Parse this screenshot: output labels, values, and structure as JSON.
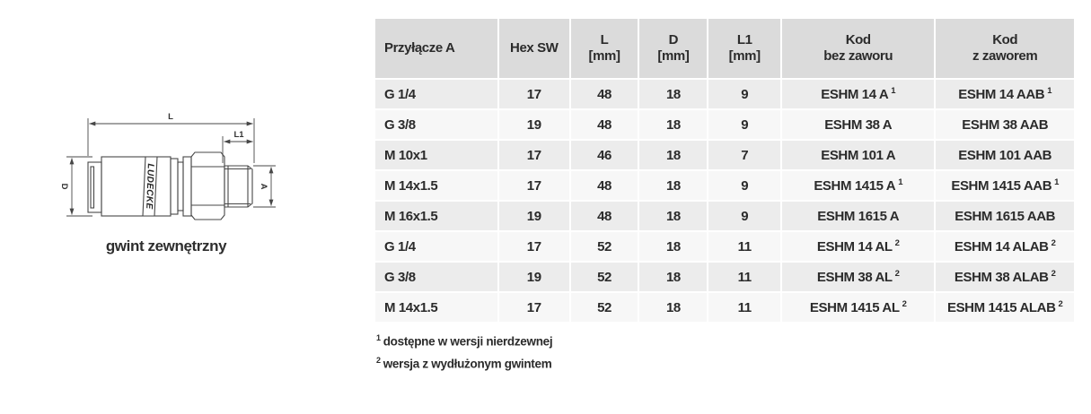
{
  "colors": {
    "header_bg": "#dbdbdb",
    "row_odd": "#ececec",
    "row_even": "#f7f7f7",
    "text": "#2b2b2b",
    "line": "#474747",
    "page_bg": "#ffffff"
  },
  "drawing": {
    "caption": "gwint zewnętrzny",
    "brand_label": "LUDECKE",
    "dim_labels": {
      "length": "L",
      "length1": "L1",
      "diameter": "D",
      "thread": "A"
    }
  },
  "table": {
    "columns": [
      {
        "label": "Przyłącze A",
        "sub": ""
      },
      {
        "label": "Hex SW",
        "sub": ""
      },
      {
        "label": "L",
        "sub": "[mm]"
      },
      {
        "label": "D",
        "sub": "[mm]"
      },
      {
        "label": "L1",
        "sub": "[mm]"
      },
      {
        "label": "Kod",
        "sub": "bez zaworu"
      },
      {
        "label": "Kod",
        "sub": "z zaworem"
      }
    ],
    "rows": [
      [
        "G 1/4",
        "17",
        "48",
        "18",
        "9",
        {
          "text": "ESHM 14 A",
          "sup": "1"
        },
        {
          "text": "ESHM 14 AAB",
          "sup": "1"
        }
      ],
      [
        "G 3/8",
        "19",
        "48",
        "18",
        "9",
        {
          "text": "ESHM 38 A",
          "sup": ""
        },
        {
          "text": "ESHM 38 AAB",
          "sup": ""
        }
      ],
      [
        "M 10x1",
        "17",
        "46",
        "18",
        "7",
        {
          "text": "ESHM 101 A",
          "sup": ""
        },
        {
          "text": "ESHM 101 AAB",
          "sup": ""
        }
      ],
      [
        "M 14x1.5",
        "17",
        "48",
        "18",
        "9",
        {
          "text": "ESHM 1415 A",
          "sup": "1"
        },
        {
          "text": "ESHM 1415 AAB",
          "sup": "1"
        }
      ],
      [
        "M 16x1.5",
        "19",
        "48",
        "18",
        "9",
        {
          "text": "ESHM 1615 A",
          "sup": ""
        },
        {
          "text": "ESHM 1615 AAB",
          "sup": ""
        }
      ],
      [
        "G 1/4",
        "17",
        "52",
        "18",
        "11",
        {
          "text": "ESHM 14 AL",
          "sup": "2"
        },
        {
          "text": "ESHM 14 ALAB",
          "sup": "2"
        }
      ],
      [
        "G 3/8",
        "19",
        "52",
        "18",
        "11",
        {
          "text": "ESHM 38 AL",
          "sup": "2"
        },
        {
          "text": "ESHM 38 ALAB",
          "sup": "2"
        }
      ],
      [
        "M 14x1.5",
        "17",
        "52",
        "18",
        "11",
        {
          "text": "ESHM 1415 AL",
          "sup": "2"
        },
        {
          "text": "ESHM 1415 ALAB",
          "sup": "2"
        }
      ]
    ],
    "footnotes": [
      {
        "sup": "1",
        "text": "dostępne w wersji nierdzewnej"
      },
      {
        "sup": "2",
        "text": "wersja z wydłużonym gwintem"
      }
    ]
  }
}
